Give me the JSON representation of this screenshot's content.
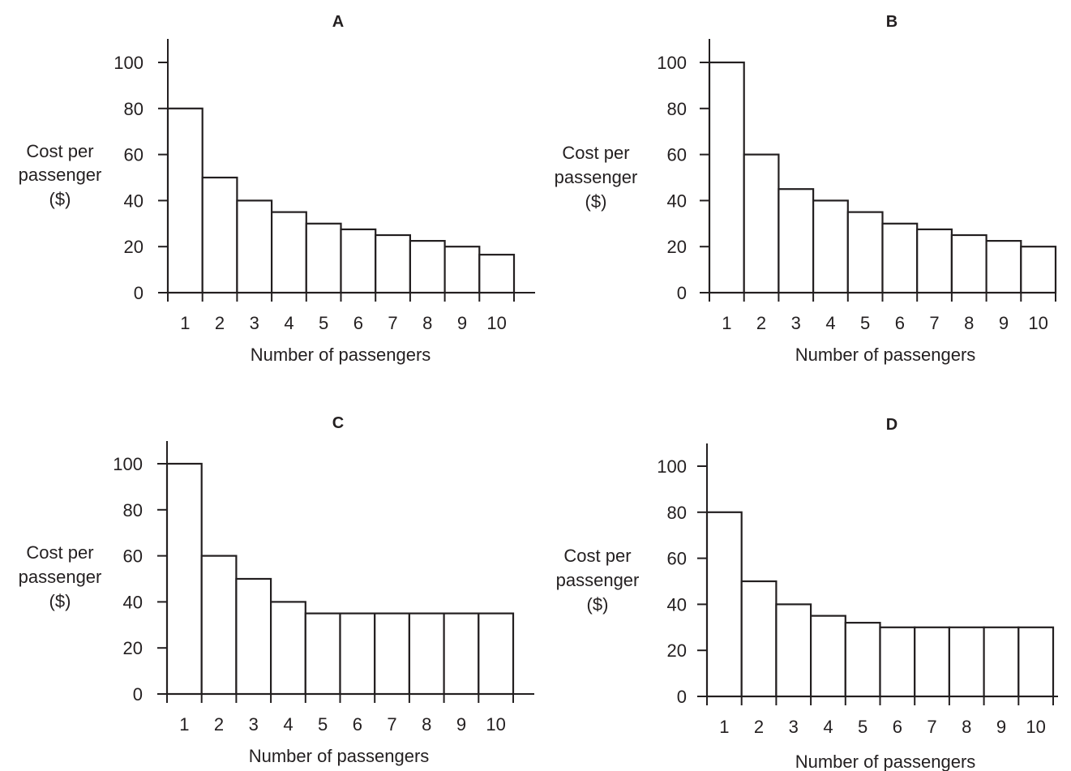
{
  "chart_data": [
    {
      "type": "bar",
      "title": "A",
      "categories": [
        "1",
        "2",
        "3",
        "4",
        "5",
        "6",
        "7",
        "8",
        "9",
        "10"
      ],
      "values": [
        80,
        50,
        40,
        35,
        30,
        27.5,
        25,
        22.5,
        20,
        16.5
      ],
      "xlabel": "Number of passengers",
      "ylabel": [
        "Cost per",
        "passenger",
        "($)"
      ],
      "yticks": [
        "0",
        "20",
        "40",
        "60",
        "80",
        "100"
      ],
      "ylim": [
        0,
        110
      ],
      "grid": false,
      "legend": "none"
    },
    {
      "type": "bar",
      "title": "B",
      "categories": [
        "1",
        "2",
        "3",
        "4",
        "5",
        "6",
        "7",
        "8",
        "9",
        "10"
      ],
      "values": [
        100,
        60,
        45,
        40,
        35,
        30,
        27.5,
        25,
        22.5,
        20
      ],
      "xlabel": "Number of passengers",
      "ylabel": [
        "Cost per",
        "passenger",
        "($)"
      ],
      "yticks": [
        "0",
        "20",
        "40",
        "60",
        "80",
        "100"
      ],
      "ylim": [
        0,
        110
      ],
      "grid": false,
      "legend": "none"
    },
    {
      "type": "bar",
      "title": "C",
      "categories": [
        "1",
        "2",
        "3",
        "4",
        "5",
        "6",
        "7",
        "8",
        "9",
        "10"
      ],
      "values": [
        100,
        60,
        50,
        40,
        35,
        35,
        35,
        35,
        35,
        35
      ],
      "xlabel": "Number of passengers",
      "ylabel": [
        "Cost per",
        "passenger",
        "($)"
      ],
      "yticks": [
        "0",
        "20",
        "40",
        "60",
        "80",
        "100"
      ],
      "ylim": [
        0,
        110
      ],
      "grid": false,
      "legend": "none"
    },
    {
      "type": "bar",
      "title": "D",
      "categories": [
        "1",
        "2",
        "3",
        "4",
        "5",
        "6",
        "7",
        "8",
        "9",
        "10"
      ],
      "values": [
        80,
        50,
        40,
        35,
        32,
        30,
        30,
        30,
        30,
        30
      ],
      "xlabel": "Number of passengers",
      "ylabel": [
        "Cost per",
        "passenger",
        "($)"
      ],
      "yticks": [
        "0",
        "20",
        "40",
        "60",
        "80",
        "100"
      ],
      "ylim": [
        0,
        110
      ],
      "grid": false,
      "legend": "none"
    }
  ]
}
